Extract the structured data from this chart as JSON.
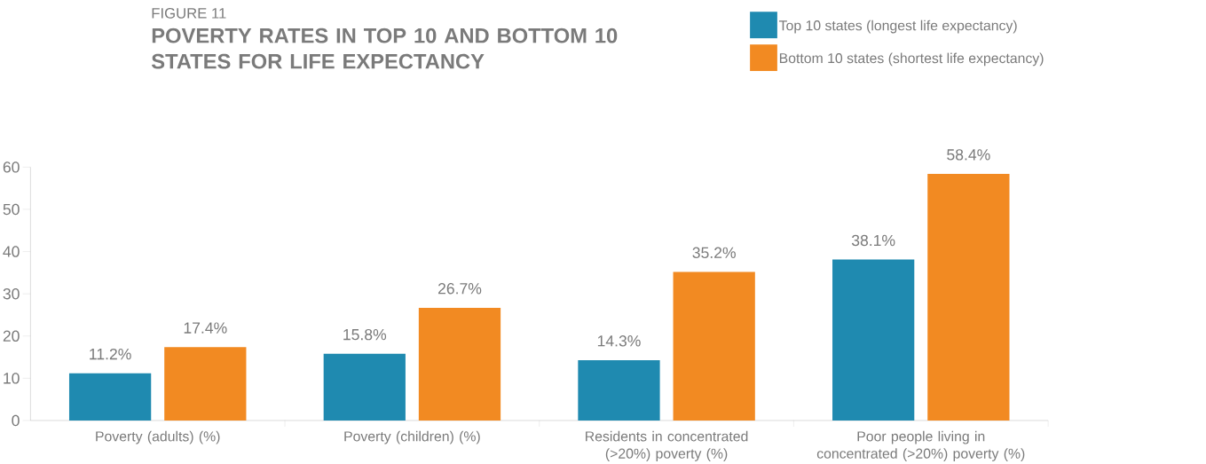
{
  "chart_data": {
    "type": "bar",
    "subtitle": "FIGURE 11",
    "title": "POVERTY RATES IN TOP 10 AND BOTTOM 10 STATES FOR LIFE EXPECTANCY",
    "categories": [
      "Poverty (adults) (%)",
      "Poverty (children) (%)",
      "Residents in concentrated (>20%) poverty (%)",
      "Poor people living in concentrated (>20%) poverty (%)"
    ],
    "series": [
      {
        "name": "Top 10 states (longest life expectancy)",
        "color": "#1f8ab0",
        "values": [
          11.2,
          15.8,
          14.3,
          38.1
        ],
        "value_labels": [
          "11.2%",
          "15.8%",
          "14.3%",
          "38.1%"
        ]
      },
      {
        "name": "Bottom 10 states (shortest life expectancy)",
        "color": "#f28a22",
        "values": [
          17.4,
          26.7,
          35.2,
          58.4
        ],
        "value_labels": [
          "17.4%",
          "26.7%",
          "35.2%",
          "58.4%"
        ]
      }
    ],
    "ylim": [
      0,
      60
    ],
    "yticks": [
      0,
      10,
      20,
      30,
      40,
      50,
      60
    ],
    "grid": false,
    "legend": "top right"
  }
}
